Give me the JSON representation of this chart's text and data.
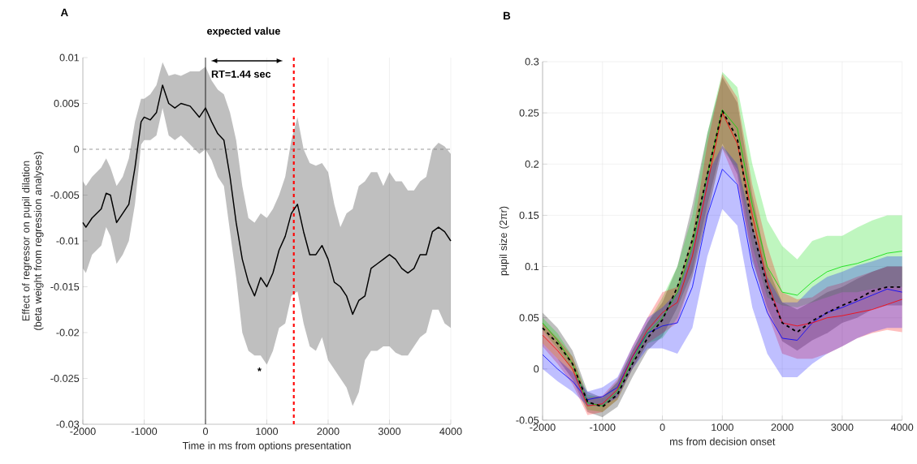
{
  "chart_data": [
    {
      "type": "line",
      "title": "A",
      "xlabel": "Time in ms from options presentation",
      "ylabel": "Effect of regressor on pupil dilation (beta weight from regression analyses)",
      "xlim": [
        -2000,
        4000
      ],
      "ylim": [
        -0.03,
        0.01
      ],
      "xticks": [
        -2000,
        -1000,
        0,
        1000,
        2000,
        3000,
        4000
      ],
      "yticks": [
        -0.03,
        -0.025,
        -0.02,
        -0.015,
        -0.01,
        -0.005,
        0,
        0.005,
        0.01
      ],
      "grid": "x",
      "x": [
        -2000,
        -1950,
        -1850,
        -1700,
        -1620,
        -1550,
        -1450,
        -1350,
        -1250,
        -1150,
        -1050,
        -1000,
        -900,
        -800,
        -700,
        -600,
        -500,
        -400,
        -250,
        -100,
        0,
        100,
        200,
        300,
        400,
        500,
        600,
        700,
        800,
        900,
        1000,
        1100,
        1200,
        1300,
        1400,
        1500,
        1600,
        1700,
        1800,
        1900,
        2000,
        2100,
        2200,
        2300,
        2400,
        2500,
        2600,
        2700,
        2800,
        2900,
        3000,
        3100,
        3200,
        3300,
        3400,
        3500,
        3600,
        3700,
        3800,
        3900,
        4000
      ],
      "series": [
        {
          "color": "#000000",
          "values": [
            -0.008,
            -0.0085,
            -0.0075,
            -0.0065,
            -0.0048,
            -0.005,
            -0.008,
            -0.007,
            -0.006,
            -0.002,
            0.003,
            0.0035,
            0.0032,
            0.004,
            0.007,
            0.005,
            0.0045,
            0.005,
            0.0047,
            0.0035,
            0.0045,
            0.003,
            0.0017,
            0.001,
            -0.003,
            -0.008,
            -0.012,
            -0.0145,
            -0.016,
            -0.014,
            -0.015,
            -0.0135,
            -0.011,
            -0.0095,
            -0.007,
            -0.006,
            -0.009,
            -0.0115,
            -0.0115,
            -0.0105,
            -0.012,
            -0.0145,
            -0.015,
            -0.016,
            -0.018,
            -0.0165,
            -0.016,
            -0.013,
            -0.0125,
            -0.012,
            -0.0115,
            -0.012,
            -0.013,
            -0.0135,
            -0.013,
            -0.0115,
            -0.0115,
            -0.009,
            -0.0085,
            -0.009,
            -0.01
          ],
          "upper": [
            -0.0035,
            -0.004,
            -0.003,
            -0.002,
            -0.001,
            -0.002,
            -0.004,
            -0.003,
            -0.001,
            0.003,
            0.0055,
            0.0055,
            0.006,
            0.007,
            0.0095,
            0.008,
            0.0082,
            0.008,
            0.0085,
            0.0085,
            0.009,
            0.0075,
            0.0065,
            0.006,
            0.004,
            0.001,
            -0.004,
            -0.0075,
            -0.008,
            -0.007,
            -0.0075,
            -0.0065,
            -0.005,
            -0.003,
            0.001,
            0.0035,
            0.0,
            -0.0015,
            -0.0018,
            -0.0015,
            -0.0025,
            -0.006,
            -0.0085,
            -0.007,
            -0.0065,
            -0.004,
            -0.0035,
            -0.0025,
            -0.0025,
            -0.004,
            -0.0025,
            -0.0035,
            -0.0035,
            -0.0045,
            -0.0045,
            -0.0035,
            -0.003,
            0.0,
            0.0007,
            0.0003,
            -0.0005
          ],
          "lower": [
            -0.013,
            -0.0135,
            -0.0115,
            -0.0105,
            -0.0085,
            -0.0095,
            -0.0125,
            -0.0115,
            -0.01,
            -0.006,
            0.0005,
            0.001,
            0.001,
            0.0015,
            0.0045,
            0.0015,
            0.001,
            0.0015,
            0.0005,
            -0.0005,
            0.0,
            -0.0012,
            -0.003,
            -0.004,
            -0.009,
            -0.014,
            -0.02,
            -0.022,
            -0.0225,
            -0.0225,
            -0.0235,
            -0.022,
            -0.0195,
            -0.019,
            -0.016,
            -0.0155,
            -0.019,
            -0.0215,
            -0.022,
            -0.0205,
            -0.023,
            -0.024,
            -0.025,
            -0.026,
            -0.028,
            -0.0265,
            -0.023,
            -0.022,
            -0.022,
            -0.0215,
            -0.0215,
            -0.0222,
            -0.0225,
            -0.0225,
            -0.0215,
            -0.0205,
            -0.02,
            -0.0175,
            -0.0175,
            -0.019,
            -0.0195
          ]
        }
      ],
      "ref_lines": [
        {
          "axis": "x",
          "value": 0,
          "color": "#000000",
          "line_style": "solid"
        },
        {
          "axis": "x",
          "value": 1440,
          "color": "#ff0000",
          "line_style": "dashed"
        },
        {
          "axis": "y",
          "value": 0,
          "color": "#808080",
          "line_style": "dashed"
        }
      ],
      "annotations": [
        "expected value",
        "RT=1.44 sec",
        "*"
      ]
    },
    {
      "type": "line",
      "title": "B",
      "xlabel": "ms from decision onset",
      "ylabel": "pupil size (2πr)",
      "xlim": [
        -2000,
        4000
      ],
      "ylim": [
        -0.05,
        0.3
      ],
      "xticks": [
        -2000,
        -1000,
        0,
        1000,
        2000,
        3000,
        4000
      ],
      "yticks": [
        -0.05,
        0,
        0.05,
        0.1,
        0.15,
        0.2,
        0.25,
        0.3
      ],
      "grid": true,
      "x": [
        -2000,
        -1750,
        -1500,
        -1250,
        -1000,
        -750,
        -500,
        -250,
        0,
        250,
        500,
        750,
        1000,
        1250,
        1500,
        1750,
        2000,
        2250,
        2500,
        2750,
        3000,
        3250,
        3500,
        3750,
        4000
      ],
      "series": [
        {
          "color": "#000000",
          "line_style": "dashed",
          "values": [
            0.04,
            0.025,
            0.005,
            -0.032,
            -0.037,
            -0.025,
            0.005,
            0.03,
            0.048,
            0.08,
            0.126,
            0.19,
            0.252,
            0.225,
            0.138,
            0.08,
            0.045,
            0.036,
            0.047,
            0.055,
            0.062,
            0.068,
            0.076,
            0.08,
            0.08
          ],
          "upper": [
            0.055,
            0.04,
            0.018,
            -0.022,
            -0.028,
            -0.013,
            0.018,
            0.045,
            0.065,
            0.1,
            0.16,
            0.23,
            0.285,
            0.26,
            0.17,
            0.1,
            0.065,
            0.058,
            0.066,
            0.075,
            0.08,
            0.088,
            0.095,
            0.1,
            0.1
          ],
          "lower": [
            0.025,
            0.01,
            -0.01,
            -0.042,
            -0.047,
            -0.037,
            -0.008,
            0.018,
            0.032,
            0.06,
            0.095,
            0.16,
            0.22,
            0.19,
            0.105,
            0.06,
            0.027,
            0.018,
            0.028,
            0.035,
            0.045,
            0.05,
            0.058,
            0.062,
            0.062
          ]
        },
        {
          "color": "#00dd00",
          "values": [
            0.045,
            0.028,
            0.005,
            -0.033,
            -0.036,
            -0.022,
            0.008,
            0.035,
            0.05,
            0.075,
            0.12,
            0.19,
            0.253,
            0.235,
            0.16,
            0.1,
            0.075,
            0.072,
            0.085,
            0.095,
            0.1,
            0.103,
            0.108,
            0.113,
            0.115
          ],
          "upper": [
            0.05,
            0.035,
            0.012,
            -0.025,
            -0.028,
            -0.012,
            0.018,
            0.045,
            0.07,
            0.1,
            0.15,
            0.23,
            0.29,
            0.275,
            0.2,
            0.145,
            0.12,
            0.107,
            0.125,
            0.13,
            0.13,
            0.138,
            0.145,
            0.15,
            0.15
          ],
          "lower": [
            0.038,
            0.02,
            -0.002,
            -0.04,
            -0.042,
            -0.03,
            0.0,
            0.025,
            0.03,
            0.05,
            0.09,
            0.15,
            0.215,
            0.195,
            0.12,
            0.07,
            0.062,
            0.06,
            0.065,
            0.07,
            0.075,
            0.075,
            0.078,
            0.08,
            0.08
          ]
        },
        {
          "color": "#ff0000",
          "values": [
            0.033,
            0.018,
            0.0,
            -0.036,
            -0.034,
            -0.02,
            0.012,
            0.038,
            0.055,
            0.065,
            0.11,
            0.18,
            0.25,
            0.22,
            0.15,
            0.085,
            0.045,
            0.042,
            0.045,
            0.05,
            0.052,
            0.055,
            0.058,
            0.063,
            0.068
          ],
          "upper": [
            0.045,
            0.03,
            0.012,
            -0.028,
            -0.026,
            -0.01,
            0.022,
            0.05,
            0.075,
            0.08,
            0.13,
            0.22,
            0.288,
            0.265,
            0.18,
            0.12,
            0.075,
            0.068,
            0.07,
            0.08,
            0.084,
            0.09,
            0.095,
            0.1,
            0.1
          ],
          "lower": [
            0.022,
            0.005,
            -0.015,
            -0.045,
            -0.042,
            -0.03,
            0.0,
            0.025,
            0.035,
            0.045,
            0.09,
            0.15,
            0.215,
            0.18,
            0.11,
            0.055,
            0.015,
            0.01,
            0.01,
            0.015,
            0.022,
            0.03,
            0.035,
            0.038,
            0.036
          ]
        },
        {
          "color": "#0000ff",
          "values": [
            0.014,
            0.0,
            -0.012,
            -0.03,
            -0.027,
            -0.018,
            0.012,
            0.035,
            0.042,
            0.045,
            0.08,
            0.15,
            0.195,
            0.18,
            0.1,
            0.055,
            0.03,
            0.028,
            0.045,
            0.055,
            0.06,
            0.066,
            0.072,
            0.078,
            0.075
          ],
          "upper": [
            0.025,
            0.01,
            -0.003,
            -0.022,
            -0.018,
            -0.008,
            0.022,
            0.05,
            0.06,
            0.075,
            0.12,
            0.19,
            0.218,
            0.2,
            0.14,
            0.09,
            0.065,
            0.065,
            0.08,
            0.09,
            0.095,
            0.101,
            0.105,
            0.11,
            0.11
          ],
          "lower": [
            0.0,
            -0.012,
            -0.022,
            -0.036,
            -0.036,
            -0.028,
            0.0,
            0.02,
            0.02,
            0.015,
            0.04,
            0.11,
            0.156,
            0.14,
            0.06,
            0.015,
            -0.008,
            -0.008,
            0.005,
            0.015,
            0.022,
            0.03,
            0.036,
            0.04,
            0.04
          ]
        }
      ]
    }
  ]
}
